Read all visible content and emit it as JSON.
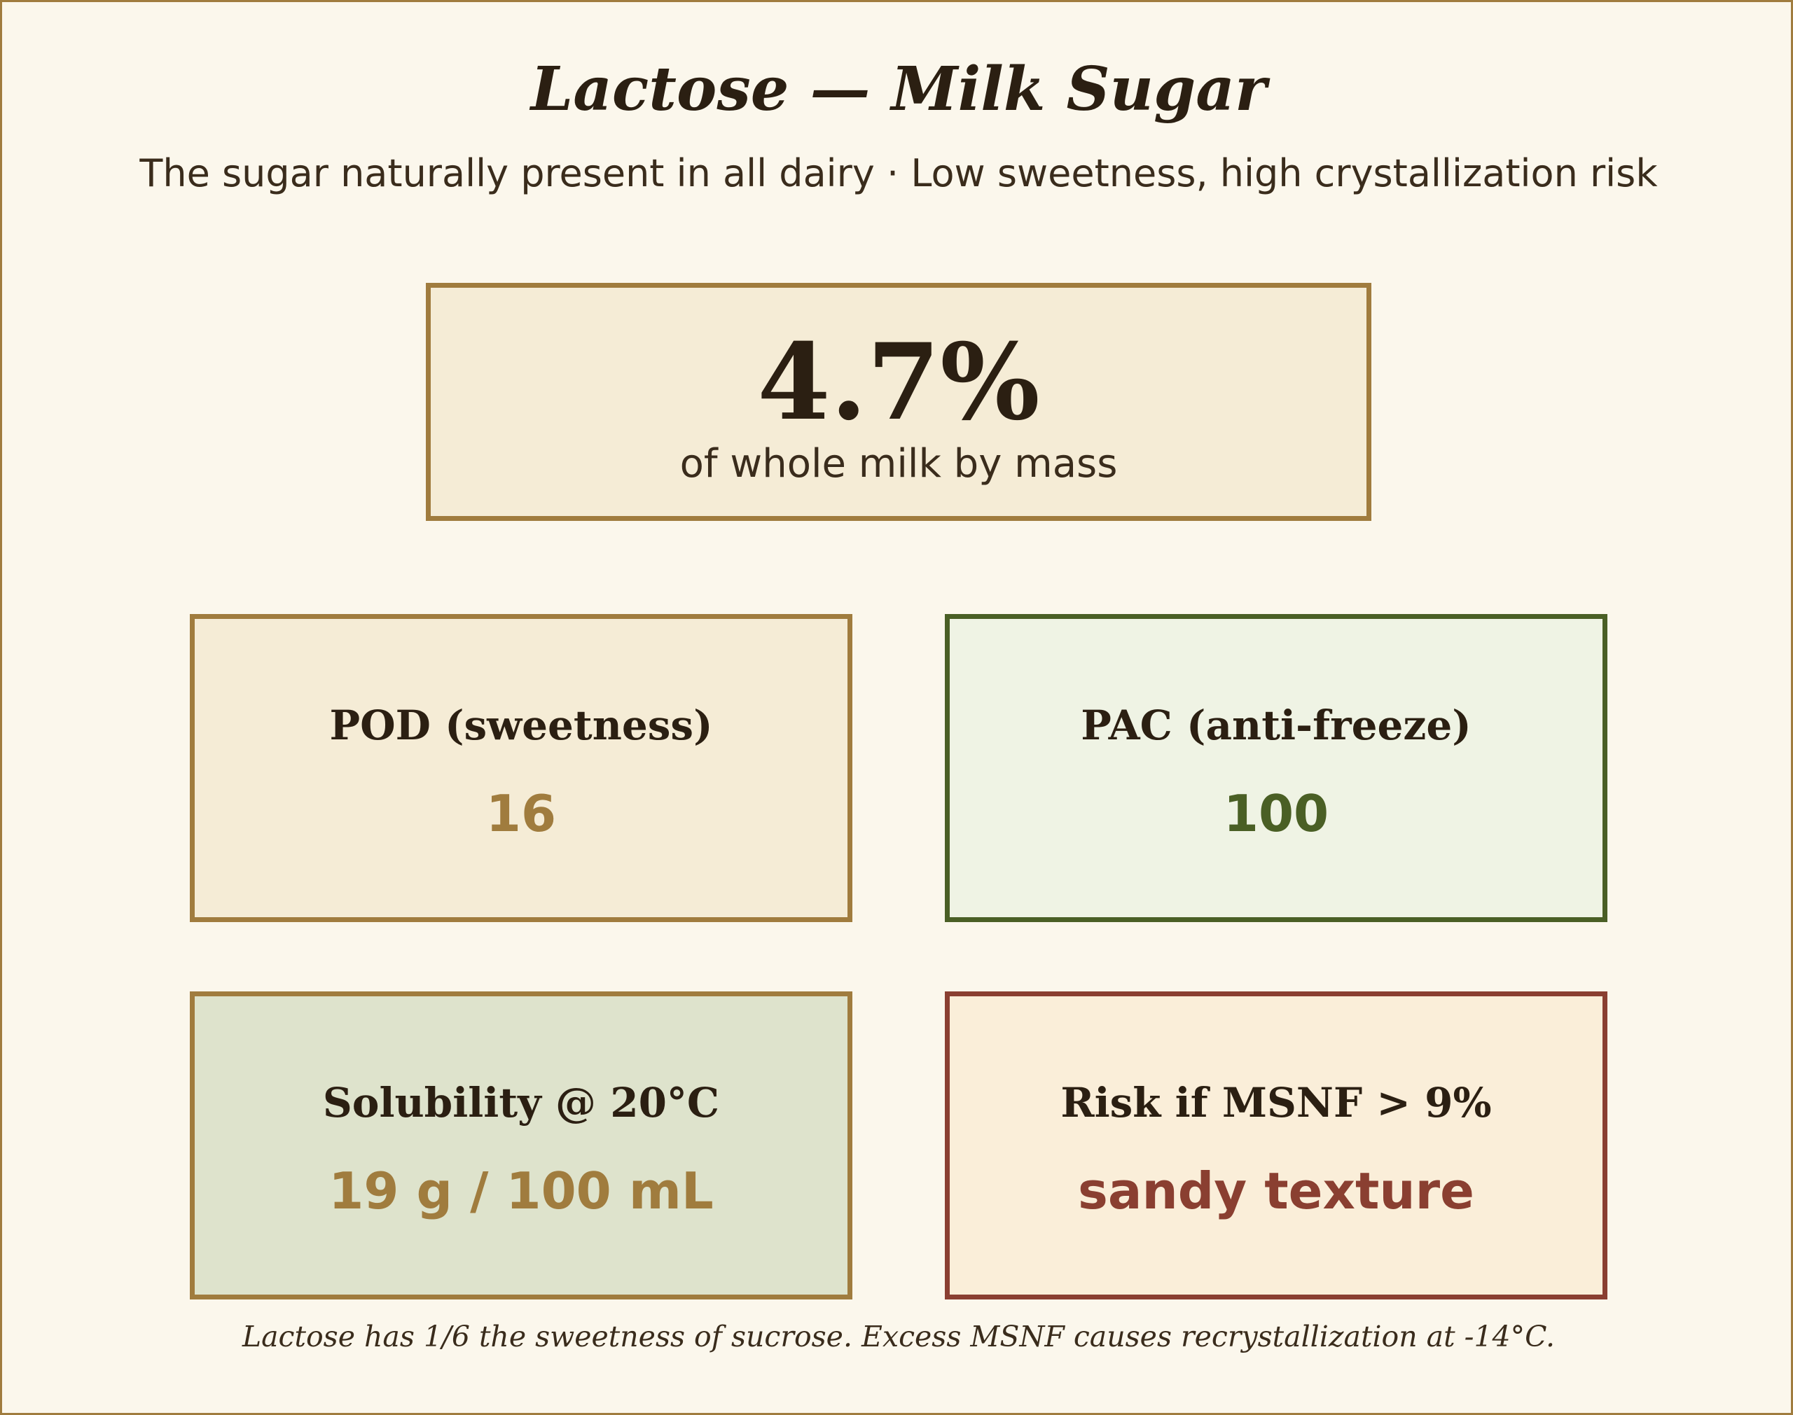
{
  "header": {
    "title": "Lactose — Milk Sugar",
    "subtitle": "The sugar naturally present in all dairy · Low sweetness, high crystallization risk"
  },
  "hero": {
    "value": "4.7%",
    "caption": "of whole milk by mass"
  },
  "cards": [
    {
      "label": "POD (sweetness)",
      "value": "16"
    },
    {
      "label": "PAC (anti-freeze)",
      "value": "100"
    },
    {
      "label": "Solubility @ 20°C",
      "value": "19 g / 100 mL"
    },
    {
      "label": "Risk if MSNF > 9%",
      "value": "sandy texture"
    }
  ],
  "footnote": "Lactose has 1/6 the sweetness of sucrose. Excess MSNF causes recrystallization at -14°C.",
  "colors": {
    "background": "#fbf7ec",
    "gold": "#a07c3e",
    "olive": "#4a5f25",
    "brick": "#8a3f31",
    "text": "#2b1f12"
  }
}
